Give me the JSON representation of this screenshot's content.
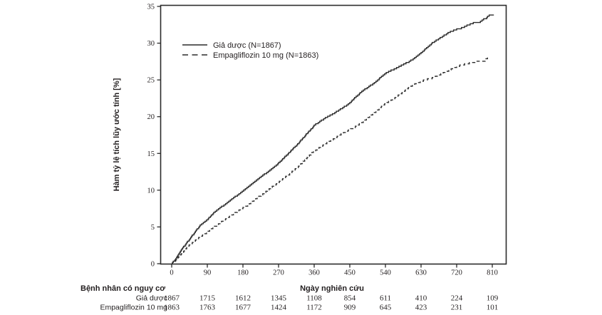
{
  "colors": {
    "ink": "#2b2b2b",
    "text": "#231f20",
    "background": "#ffffff"
  },
  "chart": {
    "y_axis": {
      "label": "Hàm tỷ lệ tích lũy ước tính [%]"
    },
    "x_axis": {
      "label": "Ngày nghiên cứu"
    }
  },
  "chart_data": {
    "type": "line",
    "subtype": "kaplan-meier-step",
    "title": "",
    "xlabel": "Ngày nghiên cứu",
    "ylabel": "Hàm tỷ lệ tích lũy ước tính [%]",
    "xlim": [
      0,
      844
    ],
    "ylim": [
      0,
      35
    ],
    "x_ticks": [
      0,
      90,
      180,
      270,
      360,
      450,
      540,
      630,
      720,
      810
    ],
    "y_ticks": [
      0,
      5,
      10,
      15,
      20,
      25,
      30,
      35
    ],
    "grid": false,
    "frame": "box",
    "legend": {
      "position": "inside-top-left",
      "entries": [
        {
          "label": "Giả dược (N=1867)",
          "style": "solid"
        },
        {
          "label": "Empagliflozin 10 mg (N=1863)",
          "style": "dashed"
        }
      ]
    },
    "series": [
      {
        "name": "Giả dược (N=1867)",
        "line_style": "solid",
        "points": [
          [
            0,
            0
          ],
          [
            10,
            0.7
          ],
          [
            20,
            1.5
          ],
          [
            30,
            2.3
          ],
          [
            40,
            3.0
          ],
          [
            50,
            3.7
          ],
          [
            60,
            4.4
          ],
          [
            70,
            5.1
          ],
          [
            80,
            5.6
          ],
          [
            90,
            6.0
          ],
          [
            100,
            6.6
          ],
          [
            110,
            7.1
          ],
          [
            120,
            7.5
          ],
          [
            135,
            8.1
          ],
          [
            150,
            8.7
          ],
          [
            165,
            9.3
          ],
          [
            180,
            9.9
          ],
          [
            195,
            10.5
          ],
          [
            210,
            11.2
          ],
          [
            225,
            11.8
          ],
          [
            240,
            12.4
          ],
          [
            255,
            13.0
          ],
          [
            270,
            13.7
          ],
          [
            285,
            14.5
          ],
          [
            300,
            15.3
          ],
          [
            315,
            16.1
          ],
          [
            330,
            17.0
          ],
          [
            345,
            17.9
          ],
          [
            360,
            18.8
          ],
          [
            375,
            19.4
          ],
          [
            390,
            19.9
          ],
          [
            405,
            20.3
          ],
          [
            420,
            20.8
          ],
          [
            435,
            21.3
          ],
          [
            450,
            21.9
          ],
          [
            465,
            22.7
          ],
          [
            480,
            23.4
          ],
          [
            495,
            24.0
          ],
          [
            510,
            24.5
          ],
          [
            525,
            25.2
          ],
          [
            540,
            25.9
          ],
          [
            555,
            26.3
          ],
          [
            570,
            26.7
          ],
          [
            585,
            27.1
          ],
          [
            600,
            27.5
          ],
          [
            615,
            28.0
          ],
          [
            630,
            28.7
          ],
          [
            645,
            29.4
          ],
          [
            660,
            30.1
          ],
          [
            675,
            30.6
          ],
          [
            690,
            31.1
          ],
          [
            705,
            31.6
          ],
          [
            720,
            31.9
          ],
          [
            735,
            32.1
          ],
          [
            750,
            32.5
          ],
          [
            765,
            32.8
          ],
          [
            780,
            32.9
          ],
          [
            788,
            33.3
          ],
          [
            795,
            33.4
          ],
          [
            801,
            33.8
          ],
          [
            814,
            33.8
          ]
        ]
      },
      {
        "name": "Empagliflozin 10 mg (N=1863)",
        "line_style": "dashed",
        "points": [
          [
            0,
            0
          ],
          [
            12,
            0.6
          ],
          [
            25,
            1.4
          ],
          [
            40,
            2.3
          ],
          [
            55,
            3.0
          ],
          [
            70,
            3.6
          ],
          [
            85,
            4.1
          ],
          [
            100,
            4.7
          ],
          [
            115,
            5.3
          ],
          [
            130,
            5.9
          ],
          [
            145,
            6.4
          ],
          [
            160,
            6.9
          ],
          [
            175,
            7.4
          ],
          [
            190,
            7.9
          ],
          [
            205,
            8.5
          ],
          [
            220,
            9.1
          ],
          [
            235,
            9.7
          ],
          [
            250,
            10.3
          ],
          [
            265,
            10.9
          ],
          [
            280,
            11.5
          ],
          [
            295,
            12.1
          ],
          [
            310,
            12.8
          ],
          [
            325,
            13.5
          ],
          [
            340,
            14.3
          ],
          [
            355,
            15.1
          ],
          [
            370,
            15.7
          ],
          [
            385,
            16.2
          ],
          [
            400,
            16.7
          ],
          [
            415,
            17.2
          ],
          [
            430,
            17.7
          ],
          [
            445,
            18.1
          ],
          [
            460,
            18.5
          ],
          [
            475,
            19.0
          ],
          [
            490,
            19.6
          ],
          [
            505,
            20.2
          ],
          [
            520,
            20.9
          ],
          [
            535,
            21.6
          ],
          [
            550,
            22.1
          ],
          [
            565,
            22.6
          ],
          [
            580,
            23.2
          ],
          [
            595,
            23.8
          ],
          [
            610,
            24.3
          ],
          [
            625,
            24.7
          ],
          [
            640,
            25.0
          ],
          [
            655,
            25.2
          ],
          [
            670,
            25.5
          ],
          [
            685,
            25.9
          ],
          [
            700,
            26.3
          ],
          [
            715,
            26.7
          ],
          [
            730,
            27.0
          ],
          [
            745,
            27.2
          ],
          [
            760,
            27.4
          ],
          [
            775,
            27.5
          ],
          [
            790,
            27.6
          ],
          [
            797,
            28.0
          ],
          [
            803,
            28.0
          ]
        ]
      }
    ]
  },
  "risk_table": {
    "header": "Bệnh nhân có nguy cơ",
    "rows": [
      {
        "label": "Giả dược",
        "values": [
          1867,
          1715,
          1612,
          1345,
          1108,
          854,
          611,
          410,
          224,
          109
        ]
      },
      {
        "label": "Empagliflozin 10 mg",
        "values": [
          1863,
          1763,
          1677,
          1424,
          1172,
          909,
          645,
          423,
          231,
          101
        ]
      }
    ]
  }
}
